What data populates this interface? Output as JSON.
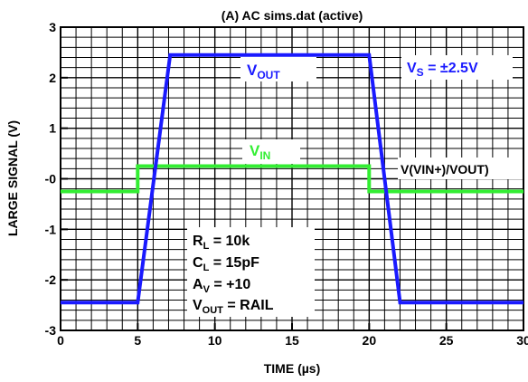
{
  "chart_data": {
    "type": "line",
    "title": "(A) AC sims.dat (active)",
    "xlabel": "TIME (µs)",
    "ylabel": "LARGE SIGNAL (V)",
    "xlim": [
      0,
      30
    ],
    "ylim": [
      -3,
      3
    ],
    "x_ticks": [
      "0",
      "5",
      "10",
      "15",
      "20",
      "25",
      "30"
    ],
    "y_ticks": [
      "3",
      "2",
      "1",
      "-0",
      "-1",
      "-2",
      "-3"
    ],
    "grid": true,
    "series": [
      {
        "name": "VOUT",
        "color": "#1a1aff",
        "x": [
          0,
          5,
          7.1,
          20.0,
          22.0,
          30
        ],
        "y": [
          -2.45,
          -2.45,
          2.45,
          2.45,
          -2.45,
          -2.45
        ]
      },
      {
        "name": "VIN",
        "color": "#33ee33",
        "x": [
          0,
          5,
          5,
          20,
          20,
          30
        ],
        "y": [
          -0.25,
          -0.25,
          0.25,
          0.25,
          -0.25,
          -0.25
        ]
      }
    ],
    "annotations": {
      "vout_label": {
        "main": "V",
        "sub": "OUT"
      },
      "vin_label": {
        "main": "V",
        "sub": "IN"
      },
      "vs_label": {
        "main": "V",
        "sub": "S",
        "rest": " = ±2.5V"
      },
      "probe_label": "V(VIN+)/VOUT)",
      "conditions": [
        {
          "main": "R",
          "sub": "L",
          "rest": " = 10k"
        },
        {
          "main": "C",
          "sub": "L",
          "rest": " = 15pF"
        },
        {
          "main": "A",
          "sub": "V",
          "rest": " = +10"
        },
        {
          "main": "V",
          "sub": "OUT",
          "rest": " = RAIL"
        }
      ]
    }
  }
}
